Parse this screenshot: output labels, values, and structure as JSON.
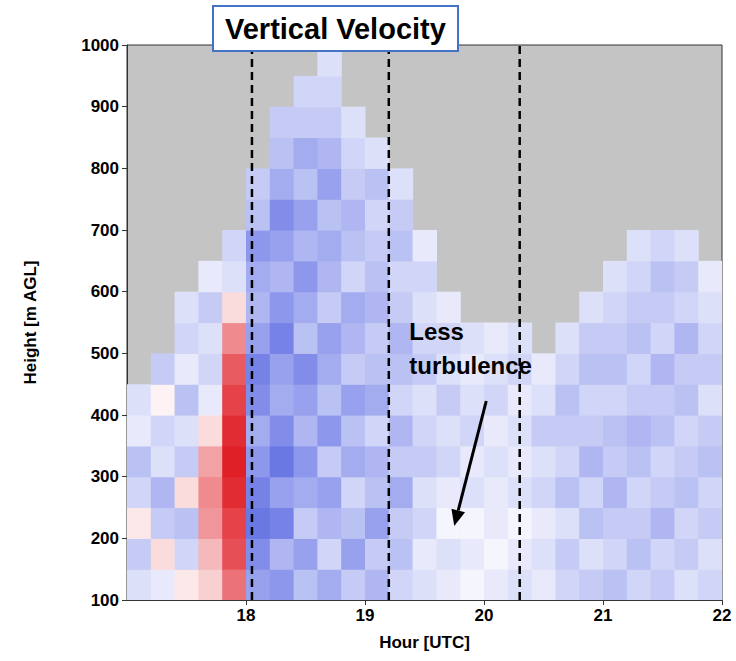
{
  "chart_data": {
    "type": "heatmap",
    "title": "Vertical Velocity",
    "xlabel": "Hour [UTC]",
    "ylabel": "Height [m AGL]",
    "xlim": [
      17,
      22
    ],
    "xticks": [
      18,
      19,
      20,
      21,
      22
    ],
    "ylim": [
      100,
      1000
    ],
    "yticks": [
      100,
      200,
      300,
      400,
      500,
      600,
      700,
      800,
      900,
      1000
    ],
    "grid": false,
    "color_range": [
      -2,
      2
    ],
    "x": [
      17.1,
      17.3,
      17.5,
      17.7,
      17.9,
      18.1,
      18.3,
      18.5,
      18.7,
      18.9,
      19.1,
      19.3,
      19.5,
      19.7,
      19.9,
      20.1,
      20.3,
      20.5,
      20.7,
      20.9,
      21.1,
      21.3,
      21.5,
      21.7,
      21.9
    ],
    "y": [
      125,
      175,
      225,
      275,
      325,
      375,
      425,
      475,
      525,
      575,
      625,
      675,
      725,
      775,
      825,
      875,
      925,
      975
    ],
    "cells": [
      [
        -0.3,
        -0.5,
        0.2,
        -0.4,
        -0.6,
        -0.2,
        -0.3,
        null,
        null,
        null,
        null,
        null,
        null,
        null,
        null,
        null,
        null,
        null
      ],
      [
        -0.2,
        0.3,
        -0.5,
        -0.7,
        -0.3,
        -0.4,
        0.1,
        -0.5,
        null,
        null,
        null,
        null,
        null,
        null,
        null,
        null,
        null,
        null
      ],
      [
        0.2,
        -0.4,
        -0.6,
        0.3,
        -0.5,
        -0.3,
        -0.6,
        -0.2,
        -0.4,
        -0.3,
        null,
        null,
        null,
        null,
        null,
        null,
        null,
        null
      ],
      [
        0.4,
        0.6,
        0.9,
        1.0,
        0.8,
        0.3,
        -0.2,
        -0.4,
        -0.3,
        -0.5,
        -0.2,
        null,
        null,
        null,
        null,
        null,
        null,
        null
      ],
      [
        1.2,
        1.5,
        1.6,
        1.8,
        1.9,
        1.8,
        1.6,
        1.4,
        1.0,
        0.3,
        -0.3,
        -0.4,
        null,
        null,
        null,
        null,
        null,
        null
      ],
      [
        -0.9,
        -1.1,
        -1.3,
        -1.2,
        -1.0,
        -0.8,
        -1.1,
        -1.2,
        -0.9,
        -0.7,
        -0.8,
        -1.0,
        -0.6,
        -0.5,
        null,
        null,
        null,
        null
      ],
      [
        -1.0,
        -0.7,
        -1.2,
        -0.9,
        -1.3,
        -1.1,
        -0.8,
        -0.9,
        -1.2,
        -1.0,
        -0.7,
        -0.9,
        -1.1,
        -0.8,
        -0.6,
        -0.5,
        null,
        null
      ],
      [
        -0.6,
        -0.9,
        -0.5,
        -0.8,
        -1.0,
        -0.7,
        -0.9,
        -1.1,
        -0.6,
        -0.8,
        -1.0,
        -0.7,
        -0.9,
        -0.6,
        -0.8,
        -0.5,
        -0.4,
        null
      ],
      [
        -0.8,
        -0.4,
        -0.7,
        -0.9,
        -0.5,
        -1.0,
        -0.6,
        -0.8,
        -0.9,
        -0.5,
        -0.7,
        -0.8,
        -0.6,
        -0.9,
        -0.7,
        -0.5,
        -0.4,
        -0.3
      ],
      [
        -0.5,
        -0.9,
        -0.6,
        -0.4,
        -0.8,
        -0.6,
        -0.9,
        -0.5,
        -0.7,
        -0.8,
        -0.4,
        -0.6,
        -0.7,
        -0.5,
        -0.4,
        -0.3,
        null,
        null
      ],
      [
        -0.7,
        -0.5,
        -0.9,
        -0.6,
        -0.7,
        -0.4,
        -0.8,
        -0.6,
        -0.5,
        -0.7,
        -0.6,
        -0.5,
        -0.4,
        -0.6,
        -0.3,
        null,
        null,
        null
      ],
      [
        -0.4,
        -0.6,
        -0.5,
        -0.8,
        -0.5,
        -0.7,
        -0.4,
        -0.6,
        -0.7,
        -0.5,
        -0.4,
        -0.6,
        -0.5,
        -0.3,
        null,
        null,
        null,
        null
      ],
      [
        -0.3,
        -0.2,
        -0.4,
        -0.3,
        -0.5,
        -0.4,
        -0.3,
        -0.5,
        -0.4,
        -0.3,
        -0.4,
        -0.2,
        null,
        null,
        null,
        null,
        null,
        null
      ],
      [
        -0.2,
        -0.3,
        -0.1,
        -0.2,
        -0.4,
        -0.3,
        -0.5,
        -0.3,
        -0.4,
        -0.2,
        null,
        null,
        null,
        null,
        null,
        null,
        null,
        null
      ],
      [
        -0.1,
        -0.2,
        -0.1,
        -0.3,
        -0.2,
        -0.4,
        -0.3,
        -0.2,
        -0.3,
        null,
        null,
        null,
        null,
        null,
        null,
        null,
        null,
        null
      ],
      [
        -0.2,
        -0.1,
        -0.2,
        -0.2,
        -0.3,
        -0.2,
        -0.4,
        -0.3,
        -0.2,
        null,
        null,
        null,
        null,
        null,
        null,
        null,
        null,
        null
      ],
      [
        -0.3,
        -0.2,
        -0.1,
        -0.3,
        -0.2,
        -0.3,
        -0.2,
        -0.4,
        -0.3,
        null,
        null,
        null,
        null,
        null,
        null,
        null,
        null,
        null
      ],
      [
        -0.2,
        -0.3,
        -0.2,
        -0.4,
        -0.3,
        -0.5,
        -0.3,
        -0.2,
        null,
        null,
        null,
        null,
        null,
        null,
        null,
        null,
        null,
        null
      ],
      [
        -0.4,
        -0.5,
        -0.3,
        -0.6,
        -0.4,
        -0.5,
        -0.6,
        -0.4,
        -0.3,
        null,
        null,
        null,
        null,
        null,
        null,
        null,
        null,
        null
      ],
      [
        -0.5,
        -0.3,
        -0.6,
        -0.4,
        -0.7,
        -0.5,
        -0.4,
        -0.6,
        -0.5,
        -0.3,
        null,
        null,
        null,
        null,
        null,
        null,
        null,
        null
      ],
      [
        -0.6,
        -0.4,
        -0.5,
        -0.7,
        -0.5,
        -0.6,
        -0.4,
        -0.6,
        -0.5,
        -0.4,
        -0.3,
        null,
        null,
        null,
        null,
        null,
        null,
        null
      ],
      [
        -0.4,
        -0.6,
        -0.5,
        -0.4,
        -0.6,
        -0.7,
        -0.5,
        -0.4,
        -0.6,
        -0.5,
        -0.4,
        -0.3,
        null,
        null,
        null,
        null,
        null,
        null
      ],
      [
        -0.5,
        -0.4,
        -0.7,
        -0.5,
        -0.4,
        -0.6,
        -0.5,
        -0.7,
        -0.4,
        -0.5,
        -0.6,
        -0.4,
        null,
        null,
        null,
        null,
        null,
        null
      ],
      [
        -0.3,
        -0.5,
        -0.4,
        -0.6,
        -0.5,
        -0.4,
        -0.6,
        -0.5,
        -0.7,
        -0.4,
        -0.5,
        -0.3,
        null,
        null,
        null,
        null,
        null,
        null
      ],
      [
        -0.4,
        -0.3,
        -0.5,
        -0.4,
        -0.6,
        -0.5,
        -0.3,
        -0.5,
        -0.4,
        -0.3,
        -0.2,
        null,
        null,
        null,
        null,
        null,
        null,
        null
      ]
    ],
    "vlines": [
      18.05,
      19.2,
      20.3
    ],
    "annotation": {
      "text": "Less turbulence",
      "x": 19.75,
      "y": 220
    }
  }
}
